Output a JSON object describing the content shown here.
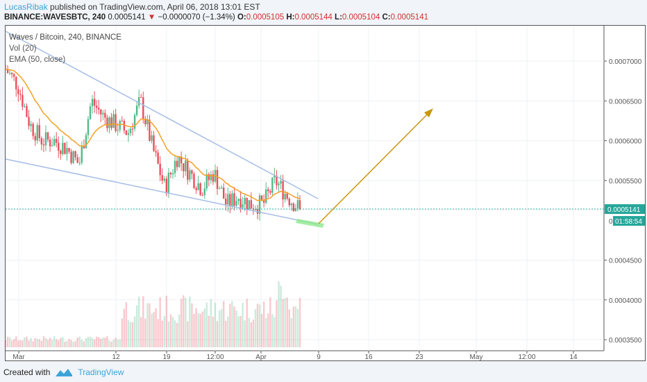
{
  "header": {
    "user": "LucasRibak",
    "published": "published on TradingView.com, April 06, 2018 13:01 EST",
    "symbol": "BINANCE:WAVESBTC, 240",
    "last": "0.0005141",
    "change": "−0.0000070 (−1.34%)",
    "o_label": "O:",
    "o": "0.0005105",
    "h_label": "H:",
    "h": "0.0005144",
    "l_label": "L:",
    "l": "0.0005104",
    "c_label": "C:",
    "c": "0.0005141"
  },
  "legend": {
    "title": "Waves / Bitcoin, 240, BINANCE",
    "vol": "Vol (20)",
    "ema": "EMA (50, close)"
  },
  "footer": {
    "created": "Created with",
    "brand": "TradingView"
  },
  "chart_data": {
    "type": "candlestick",
    "yticks": [
      "0.0007000",
      "0.0006500",
      "0.0006000",
      "0.0005500",
      "0.0004500",
      "0.0004000",
      "0.0003500"
    ],
    "ytick_values": [
      0.0007,
      0.00065,
      0.0006,
      0.00055,
      0.00045,
      0.0004,
      0.00035
    ],
    "xticks": [
      "Mar",
      "12",
      "19",
      "12:00",
      "Apr",
      "9",
      "16",
      "23",
      "May",
      "12:00",
      "14"
    ],
    "price_path": [
      0.00069,
      0.00067,
      0.00062,
      0.0006,
      0.0006,
      0.00059,
      0.00057,
      0.00065,
      0.00063,
      0.00062,
      0.00061,
      0.00065,
      0.00059,
      0.00054,
      0.00058,
      0.00056,
      0.00054,
      0.00056,
      0.00052,
      0.00053,
      0.00052,
      0.00052,
      0.00055,
      0.00053,
      0.0005141
    ],
    "last_price": "0.0005141",
    "countdown": "01:58:54",
    "partial_label": "0",
    "colors": {
      "up": "#53b987",
      "down": "#eb4d5c",
      "ema": "#f4a022",
      "trend": "#a5bde6",
      "arrow": "#c8960c",
      "highlight": "#8ee88e",
      "last": "#26a69a"
    }
  }
}
